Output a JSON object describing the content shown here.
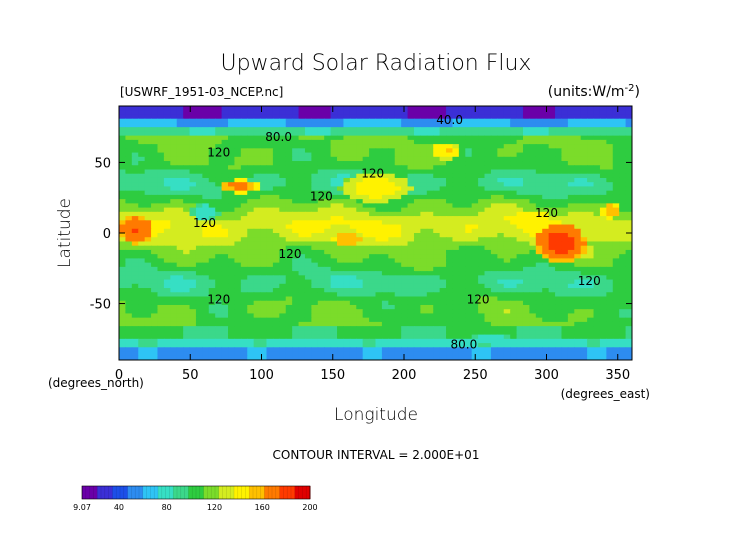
{
  "chart_data": {
    "type": "heatmap",
    "title": "Upward Solar Radiation Flux",
    "file_label": "[USWRF_1951-03_NCEP.nc]",
    "units_label": "(units:W/m^-2)",
    "xlabel": "Longitude",
    "ylabel": "Latitude",
    "x_units_label": "(degrees_east)",
    "y_units_label": "(degrees_north)",
    "xlim": [
      0,
      360
    ],
    "ylim": [
      -90,
      90
    ],
    "x_ticks": [
      0,
      50,
      100,
      150,
      200,
      250,
      300,
      350
    ],
    "y_ticks": [
      50,
      0,
      -50
    ],
    "contour_interval_text": "CONTOUR INTERVAL = 2.000E+01",
    "contour_labels": [
      {
        "text": "40.0",
        "x": 232,
        "y": 80
      },
      {
        "text": "80.0",
        "x": 112,
        "y": 68
      },
      {
        "text": "120",
        "x": 70,
        "y": 57
      },
      {
        "text": "120",
        "x": 178,
        "y": 42
      },
      {
        "text": "120",
        "x": 142,
        "y": 26
      },
      {
        "text": "120",
        "x": 60,
        "y": 7
      },
      {
        "text": "120",
        "x": 120,
        "y": -15
      },
      {
        "text": "120",
        "x": 300,
        "y": 14
      },
      {
        "text": "120",
        "x": 330,
        "y": -34
      },
      {
        "text": "120",
        "x": 70,
        "y": -47
      },
      {
        "text": "120",
        "x": 252,
        "y": -47
      },
      {
        "text": "80.0",
        "x": 242,
        "y": -79
      }
    ],
    "colorbar": {
      "min": 9.07,
      "max": 200,
      "tick_labels": [
        "9.07",
        "40",
        "80",
        "120",
        "160",
        "200"
      ],
      "tick_values": [
        9.07,
        40,
        80,
        120,
        160,
        200
      ],
      "colors": [
        "#6a00a8",
        "#3b2fd6",
        "#1c4fe8",
        "#2d8cf0",
        "#2ec4f5",
        "#36dfc4",
        "#3bd88a",
        "#2ecc40",
        "#7bdc2a",
        "#d4ec20",
        "#fff200",
        "#ffc000",
        "#ff7a00",
        "#ff3a00",
        "#e00000"
      ]
    },
    "features": [
      {
        "kind": "band",
        "lat_min": 82,
        "lat_max": 90,
        "value": 25
      },
      {
        "kind": "band",
        "lat_min": 76,
        "lat_max": 82,
        "value": 60
      },
      {
        "kind": "band",
        "lat_min": 68,
        "lat_max": 76,
        "value": 90
      },
      {
        "kind": "band",
        "lat_min": -90,
        "lat_max": -82,
        "value": 55
      },
      {
        "kind": "band",
        "lat_min": -82,
        "lat_max": -74,
        "value": 80
      },
      {
        "kind": "band",
        "lat_min": -74,
        "lat_max": -66,
        "value": 100
      },
      {
        "kind": "blob",
        "lon": 12,
        "lat": 2,
        "rlon": 12,
        "rlat": 10,
        "value": 175
      },
      {
        "kind": "blob",
        "lon": 85,
        "lat": 33,
        "rlon": 14,
        "rlat": 5,
        "value": 170
      },
      {
        "kind": "blob",
        "lon": 310,
        "lat": -8,
        "rlon": 18,
        "rlat": 14,
        "value": 180
      },
      {
        "kind": "blob",
        "lon": 160,
        "lat": -5,
        "rlon": 10,
        "rlat": 5,
        "value": 158
      },
      {
        "kind": "blob",
        "lon": 345,
        "lat": 16,
        "rlon": 6,
        "rlat": 6,
        "value": 160
      },
      {
        "kind": "blob",
        "lon": 60,
        "lat": 14,
        "rlon": 10,
        "rlat": 6,
        "value": 75
      },
      {
        "kind": "blob",
        "lon": 180,
        "lat": 32,
        "rlon": 25,
        "rlat": 10,
        "value": 145
      },
      {
        "kind": "blob",
        "lon": 290,
        "lat": 8,
        "rlon": 14,
        "rlat": 8,
        "value": 145
      },
      {
        "kind": "blob",
        "lon": 260,
        "lat": -75,
        "rlon": 14,
        "rlat": 4,
        "value": 80
      },
      {
        "kind": "blob",
        "lon": 230,
        "lat": 58,
        "rlon": 10,
        "rlat": 6,
        "value": 150
      }
    ]
  }
}
